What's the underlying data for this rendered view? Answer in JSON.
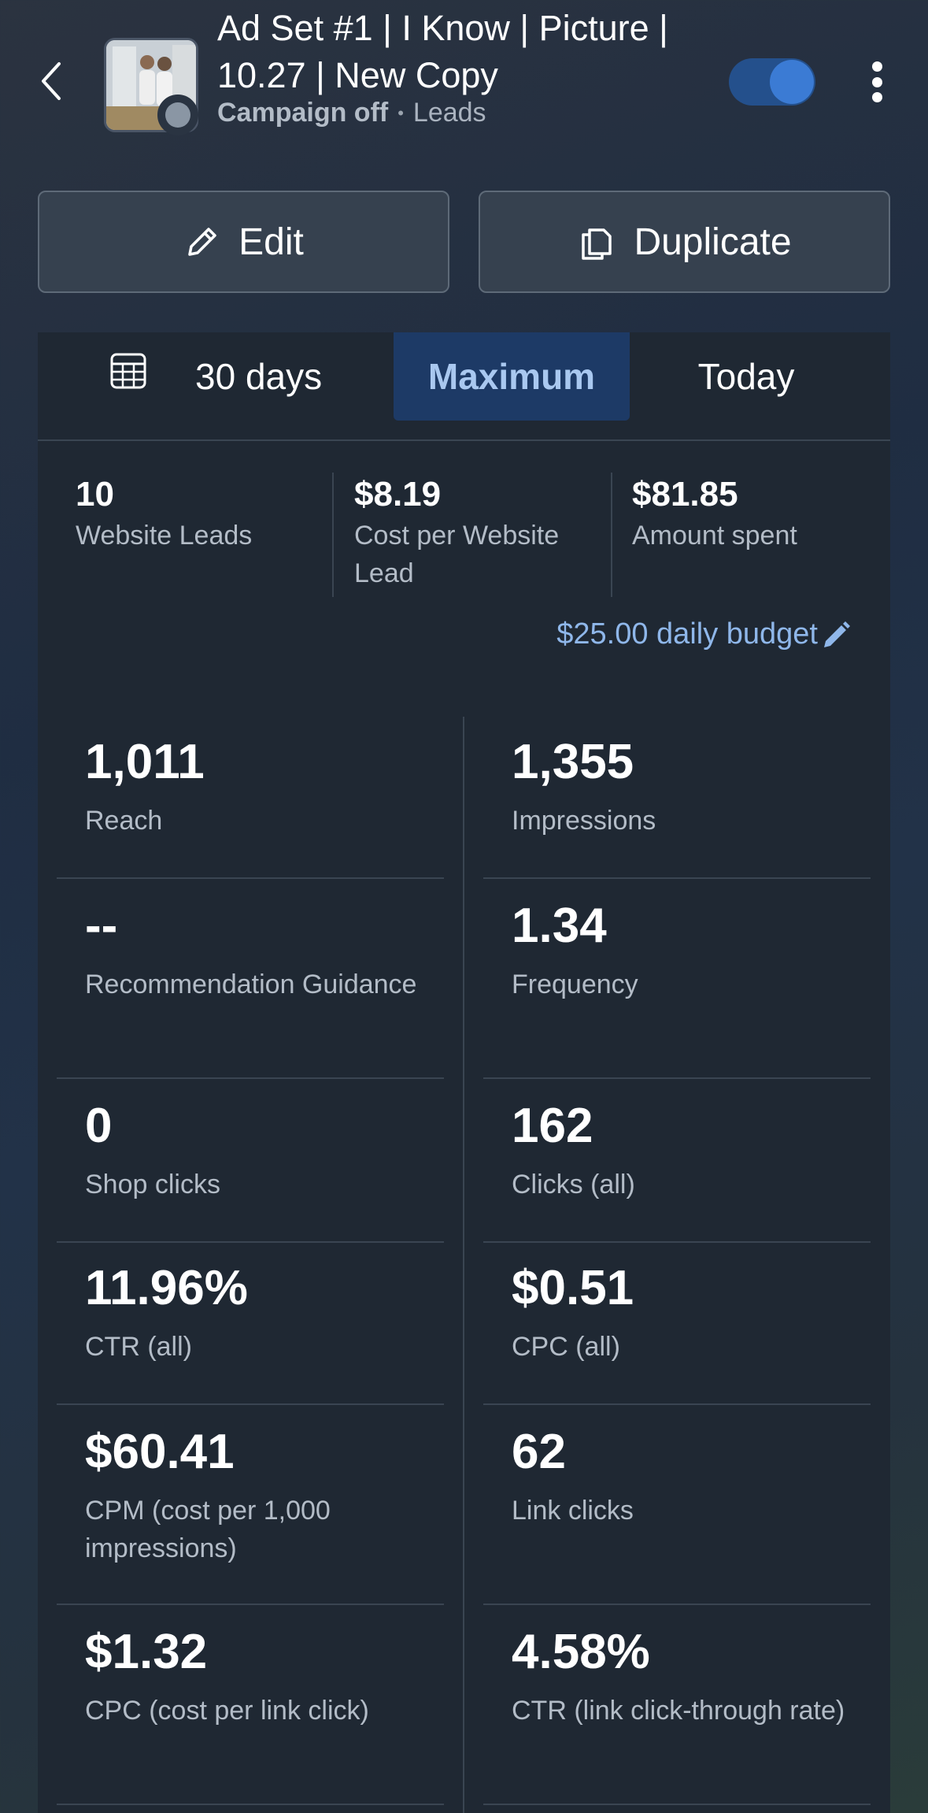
{
  "header": {
    "title": "Ad Set #1 | I Know | Picture | 10.27 | New Copy",
    "status": "Campaign off",
    "separator": "•",
    "objective": "Leads"
  },
  "actions": {
    "edit_label": "Edit",
    "duplicate_label": "Duplicate"
  },
  "tabs": {
    "last30": "30 days",
    "maximum": "Maximum",
    "today": "Today",
    "selected": "Maximum"
  },
  "summary": [
    {
      "value": "10",
      "label": "Website Leads"
    },
    {
      "value": "$8.19",
      "label": "Cost per Website Lead"
    },
    {
      "value": "$81.85",
      "label": "Amount spent"
    }
  ],
  "budget": "$25.00 daily budget",
  "metrics": {
    "reach": {
      "value": "1,011",
      "label": "Reach"
    },
    "impressions": {
      "value": "1,355",
      "label": "Impressions"
    },
    "recommendation": {
      "value": "--",
      "label": "Recommendation Guidance"
    },
    "frequency": {
      "value": "1.34",
      "label": "Frequency"
    },
    "shop_clicks": {
      "value": "0",
      "label": "Shop clicks"
    },
    "clicks_all": {
      "value": "162",
      "label": "Clicks (all)"
    },
    "ctr_all": {
      "value": "11.96%",
      "label": "CTR (all)"
    },
    "cpc_all": {
      "value": "$0.51",
      "label": "CPC (all)"
    },
    "cpm": {
      "value": "$60.41",
      "label": "CPM (cost per 1,000 impressions)"
    },
    "link_clicks": {
      "value": "62",
      "label": "Link clicks"
    },
    "cpc_link": {
      "value": "$1.32",
      "label": "CPC (cost per link click)"
    },
    "ctr_link": {
      "value": "4.58%",
      "label": "CTR (link click-through rate)"
    }
  },
  "colors": {
    "accent": "#3b7bd4",
    "budget_link": "#8fb7ea",
    "panel": "#1f2833",
    "selected_tab": "#1d3a66"
  },
  "icons": [
    "chevron-left-icon",
    "campaign-thumbnail",
    "more-vertical-icon",
    "pencil-icon",
    "duplicate-icon",
    "calendar-icon"
  ]
}
